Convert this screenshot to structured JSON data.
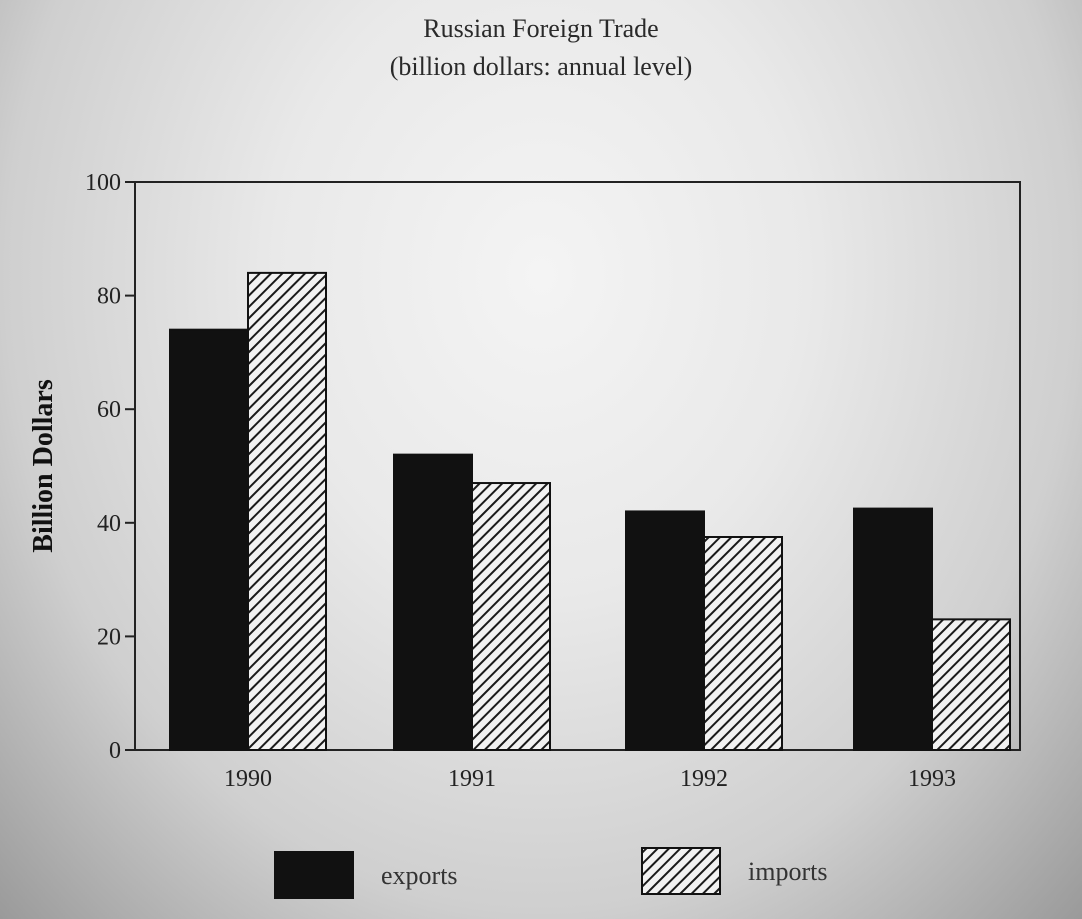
{
  "chart_data": {
    "type": "bar",
    "title": "Russian Foreign Trade",
    "subtitle": "(billion dollars:  annual level)",
    "xlabel": "",
    "ylabel": "Billion Dollars",
    "ylim": [
      0,
      100
    ],
    "yticks": [
      "0",
      "20",
      "40",
      "60",
      "80",
      "100"
    ],
    "categories": [
      "1990",
      "1991",
      "1992",
      "1993"
    ],
    "series": [
      {
        "name": "exports",
        "values": [
          74,
          52,
          42,
          42.5
        ],
        "color": "#111111",
        "pattern": "solid"
      },
      {
        "name": "imports",
        "values": [
          84,
          47,
          37.5,
          23
        ],
        "color": "#1a1a1a",
        "pattern": "hatch"
      }
    ],
    "grid": false,
    "legend_position": "bottom"
  }
}
